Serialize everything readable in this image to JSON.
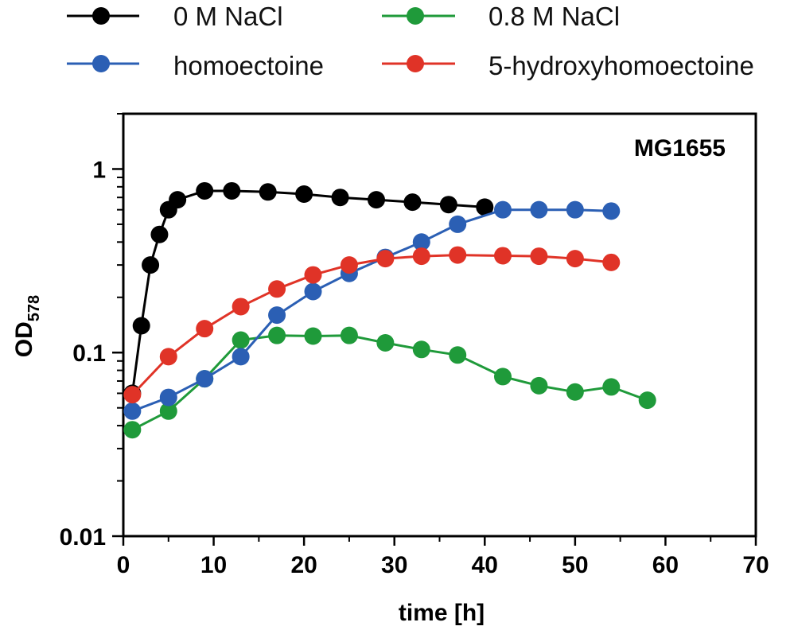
{
  "chart_data": {
    "type": "line",
    "title": "",
    "annotation": "MG1655",
    "xlabel": "time [h]",
    "ylabel_main": "OD",
    "ylabel_sub": "578",
    "xscale": "linear",
    "yscale": "log",
    "xlim": [
      0,
      70
    ],
    "ylim": [
      0.01,
      2
    ],
    "x_ticks": [
      0,
      10,
      20,
      30,
      40,
      50,
      60,
      70
    ],
    "x_tick_labels": [
      "0",
      "10",
      "20",
      "30",
      "40",
      "50",
      "60",
      "70"
    ],
    "y_ticks": [
      0.01,
      0.1,
      1
    ],
    "y_tick_labels": [
      "0.01",
      "0.1",
      "1"
    ],
    "grid": false,
    "legend_position": "top",
    "series": [
      {
        "name": "0 M NaCl",
        "color": "#000000",
        "x": [
          1,
          2,
          3,
          4,
          5,
          6,
          9,
          12,
          16,
          20,
          24,
          28,
          32,
          36,
          40
        ],
        "y": [
          0.06,
          0.14,
          0.3,
          0.44,
          0.6,
          0.68,
          0.76,
          0.76,
          0.75,
          0.73,
          0.7,
          0.68,
          0.66,
          0.64,
          0.62
        ]
      },
      {
        "name": "0.8 M NaCl",
        "color": "#1f9a3a",
        "x": [
          1,
          5,
          9,
          13,
          17,
          21,
          25,
          29,
          33,
          37,
          42,
          46,
          50,
          54,
          58
        ],
        "y": [
          0.038,
          0.048,
          0.072,
          0.117,
          0.124,
          0.123,
          0.124,
          0.113,
          0.104,
          0.097,
          0.074,
          0.066,
          0.061,
          0.065,
          0.055
        ]
      },
      {
        "name": "homoectoine",
        "color": "#2b5fb4",
        "x": [
          1,
          5,
          9,
          13,
          17,
          21,
          25,
          29,
          33,
          37,
          42,
          46,
          50,
          54
        ],
        "y": [
          0.048,
          0.057,
          0.072,
          0.095,
          0.16,
          0.215,
          0.27,
          0.33,
          0.4,
          0.5,
          0.6,
          0.6,
          0.6,
          0.59
        ]
      },
      {
        "name": "5-hydroxyhomoectoine",
        "color": "#e03327",
        "x": [
          1,
          5,
          9,
          13,
          17,
          21,
          25,
          29,
          33,
          37,
          42,
          46,
          50,
          54
        ],
        "y": [
          0.059,
          0.095,
          0.135,
          0.178,
          0.222,
          0.265,
          0.3,
          0.325,
          0.335,
          0.34,
          0.337,
          0.335,
          0.325,
          0.31
        ]
      }
    ]
  }
}
